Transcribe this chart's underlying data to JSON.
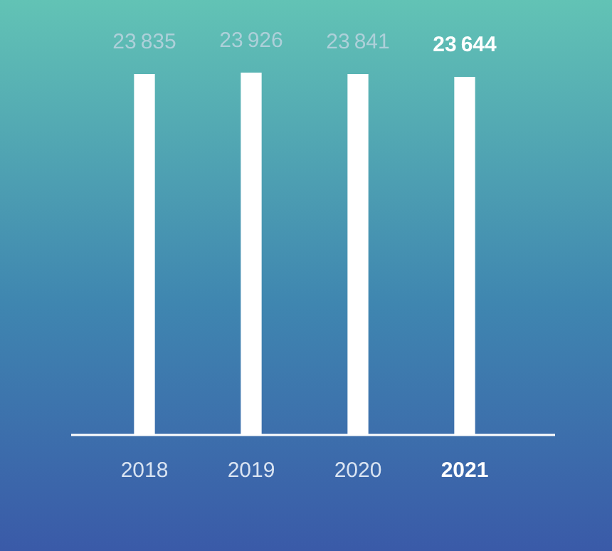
{
  "chart_data": {
    "type": "bar",
    "categories": [
      "2018",
      "2019",
      "2020",
      "2021"
    ],
    "values": [
      23835,
      23926,
      23841,
      23644
    ],
    "color": "#ffffff",
    "data_labels": true,
    "tick_labels": "x",
    "grid": false,
    "legend": false
  }
}
